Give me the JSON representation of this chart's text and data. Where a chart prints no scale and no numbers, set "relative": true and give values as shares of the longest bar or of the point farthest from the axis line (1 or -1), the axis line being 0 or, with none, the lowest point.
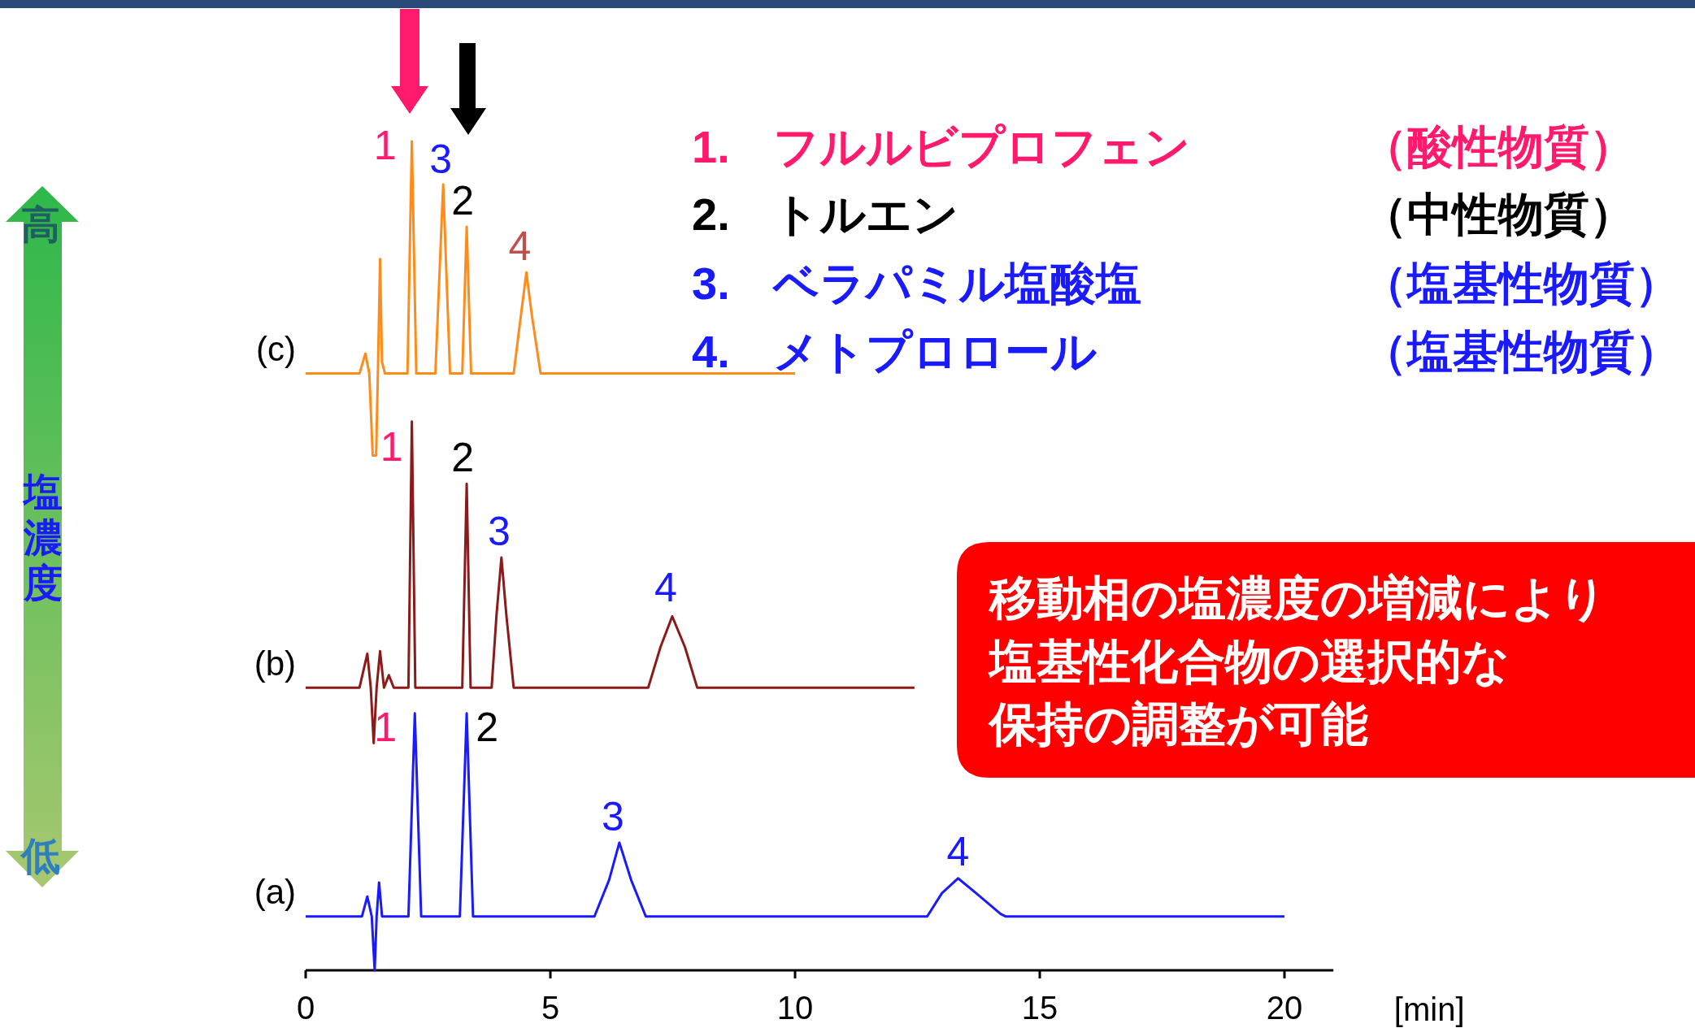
{
  "chart_data": {
    "type": "line",
    "relative": true,
    "xlim": [
      0,
      21
    ],
    "xticks": [
      0,
      5,
      10,
      15,
      20
    ],
    "xlabel": "[min]",
    "tick_labels": "x",
    "series": [
      {
        "name": "(c)",
        "color": "#ff8c1a",
        "x": [
          0,
          1.1,
          1.22,
          1.3,
          1.37,
          1.44,
          1.48,
          1.52,
          1.56,
          1.62,
          2.08,
          2.17,
          2.26,
          2.65,
          2.81,
          2.95,
          3.2,
          3.29,
          3.38,
          4.25,
          4.4,
          4.51,
          4.62,
          4.8,
          10
        ],
        "values": [
          0.72,
          0.72,
          0.744,
          0.72,
          0.621,
          0.621,
          0.734,
          0.858,
          0.734,
          0.72,
          0.72,
          1,
          0.72,
          0.72,
          0.948,
          0.72,
          0.72,
          0.897,
          0.72,
          0.72,
          0.791,
          0.842,
          0.791,
          0.72,
          0.72
        ]
      },
      {
        "name": "(b)",
        "color": "#8b1a1a",
        "x": [
          0,
          1.1,
          1.26,
          1.33,
          1.39,
          1.45,
          1.52,
          1.6,
          1.7,
          1.8,
          2.1,
          2.17,
          2.24,
          3.2,
          3.29,
          3.37,
          3.8,
          3.9,
          4.0,
          4.1,
          4.25,
          7.0,
          7.25,
          7.49,
          7.75,
          8.0,
          12.44
        ],
        "values": [
          0.341,
          0.341,
          0.382,
          0.341,
          0.274,
          0.341,
          0.385,
          0.341,
          0.356,
          0.341,
          0.341,
          0.662,
          0.341,
          0.341,
          0.587,
          0.341,
          0.341,
          0.429,
          0.498,
          0.429,
          0.341,
          0.341,
          0.39,
          0.427,
          0.39,
          0.341,
          0.341
        ]
      },
      {
        "name": "(a)",
        "color": "#1a1aff",
        "x": [
          0,
          1.15,
          1.26,
          1.35,
          1.41,
          1.45,
          1.5,
          1.56,
          2.1,
          2.23,
          2.36,
          3.15,
          3.29,
          3.42,
          5.9,
          6.2,
          6.41,
          6.65,
          6.95,
          12.7,
          13.0,
          13.33,
          13.7,
          14.2,
          14.3,
          20
        ],
        "values": [
          0.065,
          0.065,
          0.089,
          0.065,
          0,
          0.065,
          0.106,
          0.065,
          0.065,
          0.31,
          0.065,
          0.065,
          0.31,
          0.065,
          0.065,
          0.109,
          0.154,
          0.109,
          0.065,
          0.065,
          0.093,
          0.111,
          0.093,
          0.068,
          0.065,
          0.065
        ]
      }
    ],
    "annotations": [
      {
        "text": "1",
        "x": 2.17,
        "y": 1
      },
      {
        "text": "3",
        "x": 2.81,
        "y": 0.948
      },
      {
        "text": "2",
        "x": 3.29,
        "y": 0.897
      },
      {
        "text": "4",
        "x": 4.51,
        "y": 0.842
      },
      {
        "text": "1",
        "x": 2.17,
        "y": 0.662
      },
      {
        "text": "2",
        "x": 3.29,
        "y": 0.587
      },
      {
        "text": "3",
        "x": 4.0,
        "y": 0.498
      },
      {
        "text": "4",
        "x": 7.49,
        "y": 0.427
      },
      {
        "text": "1",
        "x": 2.23,
        "y": 0.31
      },
      {
        "text": "2",
        "x": 3.29,
        "y": 0.31
      },
      {
        "text": "3",
        "x": 6.41,
        "y": 0.154
      },
      {
        "text": "4",
        "x": 13.33,
        "y": 0.111
      },
      "1.",
      "フルルビプロフェン",
      "（酸性物質）",
      "2.",
      "トルエン",
      "（中性物質）",
      "3.",
      "ベラパミル塩酸塩",
      "（塩基性物質）",
      "4.",
      "メトプロロール",
      "（塩基性物質）",
      "移動相の塩濃度の増減により",
      "塩基性化合物の選択的な",
      "保持の調整が可能",
      "高",
      "塩濃度",
      "低"
    ]
  }
}
